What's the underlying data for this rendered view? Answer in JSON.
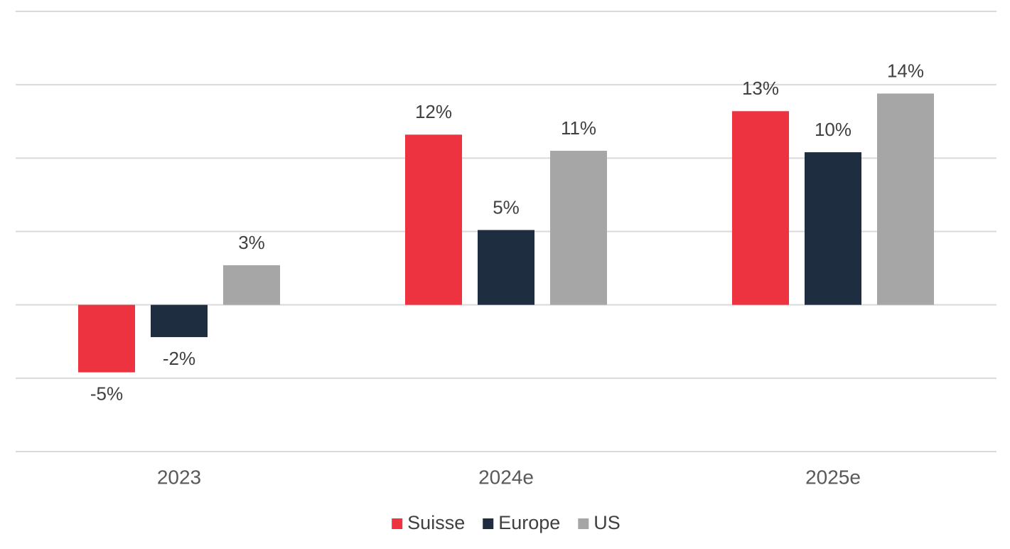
{
  "chart_data": {
    "type": "bar",
    "categories": [
      "2023",
      "2024e",
      "2025e"
    ],
    "series": [
      {
        "name": "Suisse",
        "color": "#ee3340",
        "values": [
          -4.6,
          11.6,
          13.2
        ],
        "value_labels": [
          "-5%",
          "12%",
          "13%"
        ]
      },
      {
        "name": "Europe",
        "color": "#1e2d40",
        "values": [
          -2.2,
          5.1,
          10.4
        ],
        "value_labels": [
          "-2%",
          "5%",
          "10%"
        ]
      },
      {
        "name": "US",
        "color": "#a6a6a6",
        "values": [
          2.7,
          10.5,
          14.4
        ],
        "value_labels": [
          "3%",
          "11%",
          "14%"
        ]
      }
    ],
    "ylim": [
      -10,
      20
    ],
    "yticks": [
      -10,
      -5,
      0,
      5,
      10,
      15,
      20
    ],
    "grid": true,
    "legend": "bottom"
  }
}
